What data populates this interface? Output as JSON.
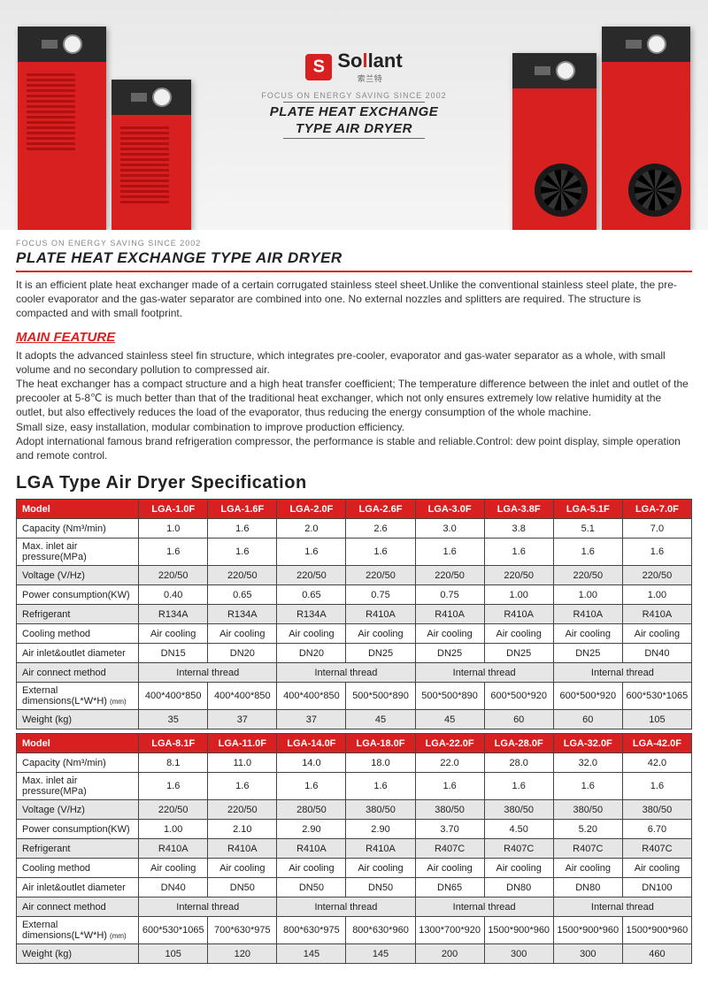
{
  "hero": {
    "brand": "Sollant",
    "brand_sub": "索兰特",
    "tagline": "FOCUS ON ENERGY SAVING SINCE 2002",
    "title1": "PLATE HEAT EXCHANGE",
    "title2": "TYPE AIR DRYER",
    "machine_color": "#d82020",
    "machine_top_color": "#2a2a2a"
  },
  "content": {
    "tagline": "FOCUS ON ENERGY SAVING SINCE 2002",
    "title": "PLATE HEAT EXCHANGE TYPE AIR DRYER",
    "desc": "It is an efficient plate heat exchanger made of a certain corrugated stainless steel sheet.Unlike the conventional stainless steel plate, the pre-cooler evaporator and the gas-water separator are combined into one. No external nozzles and splitters are required. The structure is compacted and with small footprint.",
    "feature_heading": "MAIN FEATURE",
    "feature_text": "It adopts the advanced stainless steel fin structure, which integrates pre-cooler, evaporator and gas-water separator as a whole, with small volume and no secondary pollution to compressed air.\nThe heat exchanger has a compact structure and a high heat transfer coefficient; The temperature difference between the inlet and outlet of the precooler at 5-8℃ is much better than that of the traditional heat exchanger, which not only ensures extremely low relative humidity at the outlet, but also effectively reduces the load of the evaporator, thus reducing the energy consumption of the whole machine.\nSmall size, easy installation, modular combination to improve production efficiency.\nAdopt international famous brand refrigeration compressor, the performance is stable and reliable.Control: dew point display, simple operation and remote control.",
    "spec_heading": "LGA Type Air Dryer Specification"
  },
  "table1": {
    "header_label": "Model",
    "models": [
      "LGA-1.0F",
      "LGA-1.6F",
      "LGA-2.0F",
      "LGA-2.6F",
      "LGA-3.0F",
      "LGA-3.8F",
      "LGA-5.1F",
      "LGA-7.0F"
    ],
    "rows": {
      "capacity": {
        "label": "Capacity (Nm³/min)",
        "vals": [
          "1.0",
          "1.6",
          "2.0",
          "2.6",
          "3.0",
          "3.8",
          "5.1",
          "7.0"
        ],
        "shaded": false
      },
      "pressure": {
        "label": "Max. inlet air pressure(MPa)",
        "vals": [
          "1.6",
          "1.6",
          "1.6",
          "1.6",
          "1.6",
          "1.6",
          "1.6",
          "1.6"
        ],
        "shaded": false
      },
      "voltage": {
        "label": "Voltage (V/Hz)",
        "vals": [
          "220/50",
          "220/50",
          "220/50",
          "220/50",
          "220/50",
          "220/50",
          "220/50",
          "220/50"
        ],
        "shaded": true
      },
      "power": {
        "label": "Power consumption(KW)",
        "vals": [
          "0.40",
          "0.65",
          "0.65",
          "0.75",
          "0.75",
          "1.00",
          "1.00",
          "1.00"
        ],
        "shaded": false
      },
      "refrig": {
        "label": "Refrigerant",
        "vals": [
          "R134A",
          "R134A",
          "R134A",
          "R410A",
          "R410A",
          "R410A",
          "R410A",
          "R410A"
        ],
        "shaded": true
      },
      "cooling": {
        "label": "Cooling method",
        "vals": [
          "Air cooling",
          "Air cooling",
          "Air cooling",
          "Air cooling",
          "Air cooling",
          "Air cooling",
          "Air cooling",
          "Air cooling"
        ],
        "shaded": false
      },
      "diameter": {
        "label": "Air inlet&outlet diameter",
        "vals": [
          "DN15",
          "DN20",
          "DN20",
          "DN25",
          "DN25",
          "DN25",
          "DN25",
          "DN40"
        ],
        "shaded": false
      },
      "connect": {
        "label": "Air connect method",
        "spans": [
          "Internal thread",
          "Internal thread",
          "Internal thread",
          "Internal thread"
        ],
        "shaded": true
      },
      "dims": {
        "label": "External dimensions(L*W*H)",
        "sub": "(mm)",
        "vals": [
          "400*400*850",
          "400*400*850",
          "400*400*850",
          "500*500*890",
          "500*500*890",
          "600*500*920",
          "600*500*920",
          "600*530*1065"
        ],
        "shaded": false
      },
      "weight": {
        "label": "Weight (kg)",
        "vals": [
          "35",
          "37",
          "37",
          "45",
          "45",
          "60",
          "60",
          "105"
        ],
        "shaded": true
      }
    }
  },
  "table2": {
    "header_label": "Model",
    "models": [
      "LGA-8.1F",
      "LGA-11.0F",
      "LGA-14.0F",
      "LGA-18.0F",
      "LGA-22.0F",
      "LGA-28.0F",
      "LGA-32.0F",
      "LGA-42.0F"
    ],
    "rows": {
      "capacity": {
        "label": "Capacity (Nm³/min)",
        "vals": [
          "8.1",
          "11.0",
          "14.0",
          "18.0",
          "22.0",
          "28.0",
          "32.0",
          "42.0"
        ],
        "shaded": false
      },
      "pressure": {
        "label": "Max. inlet air pressure(MPa)",
        "vals": [
          "1.6",
          "1.6",
          "1.6",
          "1.6",
          "1.6",
          "1.6",
          "1.6",
          "1.6"
        ],
        "shaded": false
      },
      "voltage": {
        "label": "Voltage (V/Hz)",
        "vals": [
          "220/50",
          "220/50",
          "280/50",
          "380/50",
          "380/50",
          "380/50",
          "380/50",
          "380/50"
        ],
        "shaded": true
      },
      "power": {
        "label": "Power consumption(KW)",
        "vals": [
          "1.00",
          "2.10",
          "2.90",
          "2.90",
          "3.70",
          "4.50",
          "5.20",
          "6.70"
        ],
        "shaded": false
      },
      "refrig": {
        "label": "Refrigerant",
        "vals": [
          "R410A",
          "R410A",
          "R410A",
          "R410A",
          "R407C",
          "R407C",
          "R407C",
          "R407C"
        ],
        "shaded": true
      },
      "cooling": {
        "label": "Cooling method",
        "vals": [
          "Air cooling",
          "Air cooling",
          "Air cooling",
          "Air cooling",
          "Air cooling",
          "Air cooling",
          "Air cooling",
          "Air cooling"
        ],
        "shaded": false
      },
      "diameter": {
        "label": "Air inlet&outlet diameter",
        "vals": [
          "DN40",
          "DN50",
          "DN50",
          "DN50",
          "DN65",
          "DN80",
          "DN80",
          "DN100"
        ],
        "shaded": false
      },
      "connect": {
        "label": "Air connect method",
        "spans": [
          "Internal thread",
          "Internal thread",
          "Internal thread",
          "Internal thread"
        ],
        "shaded": true
      },
      "dims": {
        "label": "External dimensions(L*W*H)",
        "sub": "(mm)",
        "vals": [
          "600*530*1065",
          "700*630*975",
          "800*630*975",
          "800*630*960",
          "1300*700*920",
          "1500*900*960",
          "1500*900*960",
          "1500*900*960"
        ],
        "shaded": false
      },
      "weight": {
        "label": "Weight (kg)",
        "vals": [
          "105",
          "120",
          "145",
          "145",
          "200",
          "300",
          "300",
          "460"
        ],
        "shaded": true
      }
    }
  },
  "style": {
    "brand_red": "#d82020",
    "shade_bg": "#e6e6e6",
    "border": "#444444"
  }
}
